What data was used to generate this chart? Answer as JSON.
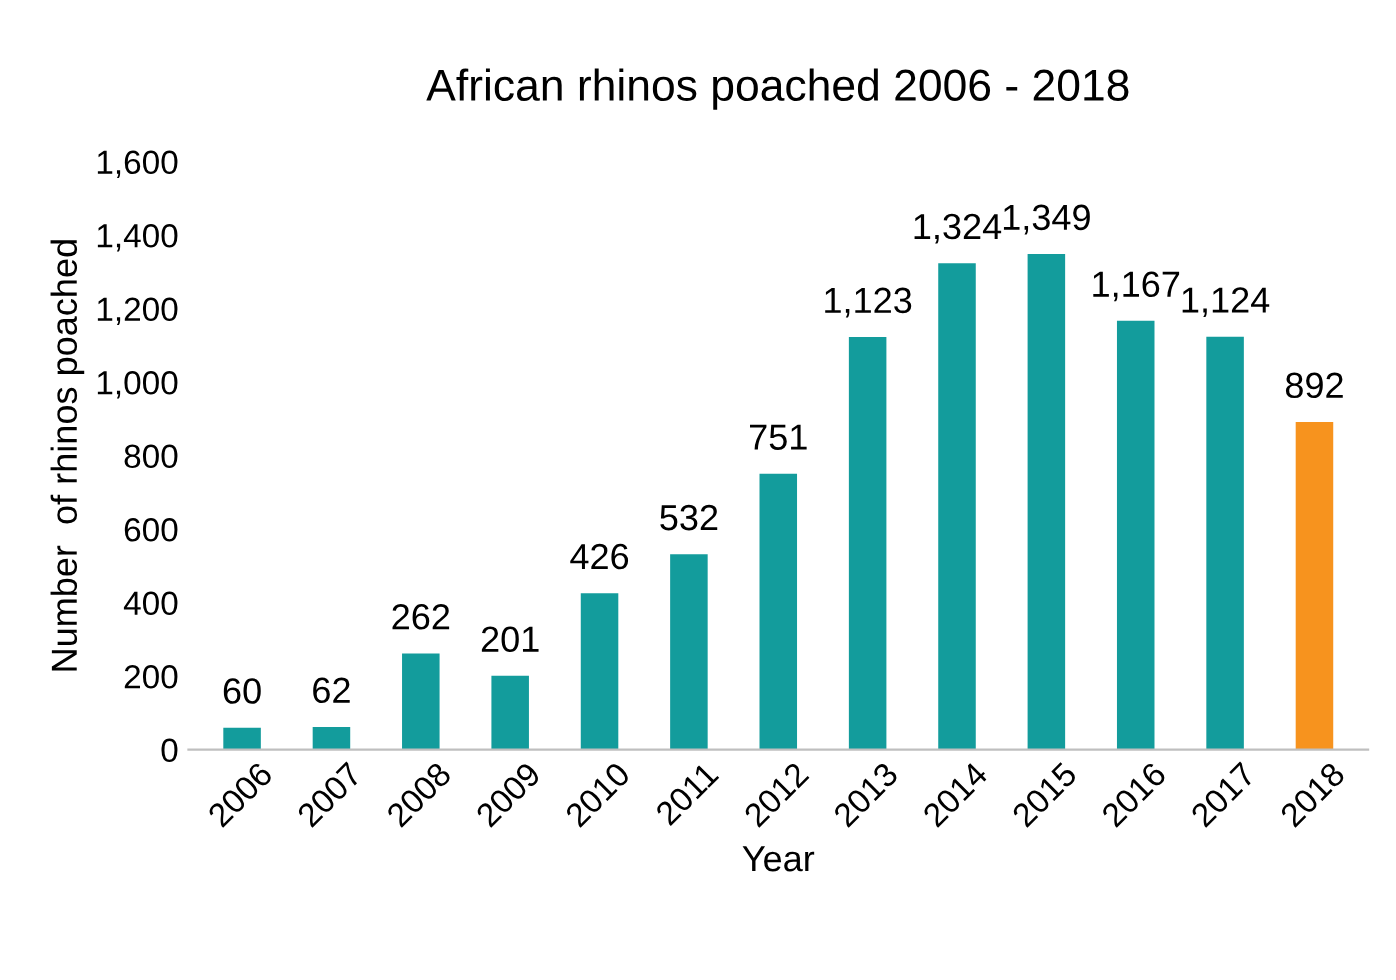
{
  "chart_data": {
    "type": "bar",
    "title": "African rhinos poached 2006 - 2018",
    "xlabel": "Year",
    "ylabel": "Number  of rhinos poached",
    "categories": [
      "2006",
      "2007",
      "2008",
      "2009",
      "2010",
      "2011",
      "2012",
      "2013",
      "2014",
      "2015",
      "2016",
      "2017",
      "2018"
    ],
    "values": [
      60,
      62,
      262,
      201,
      426,
      532,
      751,
      1123,
      1324,
      1349,
      1167,
      1124,
      892
    ],
    "colors": [
      "#139c9c",
      "#139c9c",
      "#139c9c",
      "#139c9c",
      "#139c9c",
      "#139c9c",
      "#139c9c",
      "#139c9c",
      "#139c9c",
      "#139c9c",
      "#139c9c",
      "#139c9c",
      "#f7931e"
    ],
    "value_labels": [
      "60",
      "62",
      "262",
      "201",
      "426",
      "532",
      "751",
      "1,123",
      "1,324",
      "1,349",
      "1,167",
      "1,124",
      "892"
    ],
    "ylim": [
      0,
      1600
    ],
    "yticks": [
      {
        "value": 0,
        "label": "0"
      },
      {
        "value": 200,
        "label": "200"
      },
      {
        "value": 400,
        "label": "400"
      },
      {
        "value": 600,
        "label": "600"
      },
      {
        "value": 800,
        "label": "800"
      },
      {
        "value": 1000,
        "label": "1,000"
      },
      {
        "value": 1200,
        "label": "1,200"
      },
      {
        "value": 1400,
        "label": "1,400"
      },
      {
        "value": 1600,
        "label": "1,600"
      }
    ],
    "grid": false,
    "legend": false
  }
}
